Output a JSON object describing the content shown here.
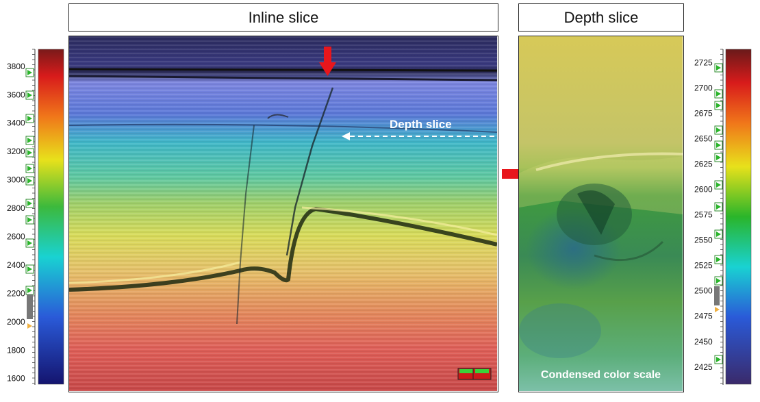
{
  "panels": {
    "inline": {
      "title": "Inline slice",
      "annotation": "Depth slice"
    },
    "depth": {
      "title": "Depth slice",
      "annotation": "Condensed color scale"
    }
  },
  "left_scale": {
    "ticks": [
      "3800",
      "3600",
      "3400",
      "3200",
      "3000",
      "2800",
      "2600",
      "2400",
      "2200",
      "2000",
      "1800",
      "1600"
    ],
    "min": 1560,
    "max": 3920
  },
  "right_scale": {
    "ticks": [
      "2725",
      "2700",
      "2675",
      "2650",
      "2625",
      "2600",
      "2575",
      "2550",
      "2525",
      "2500",
      "2475",
      "2450",
      "2425"
    ],
    "min": 2408,
    "max": 2738
  },
  "colors": {
    "arrow": "#e8161c",
    "ramp": [
      "#6b1a1a",
      "#d61a1a",
      "#f07a1a",
      "#e8e21a",
      "#2bb52b",
      "#1ad6d6",
      "#2a5cd6",
      "#1a1a7a"
    ]
  }
}
